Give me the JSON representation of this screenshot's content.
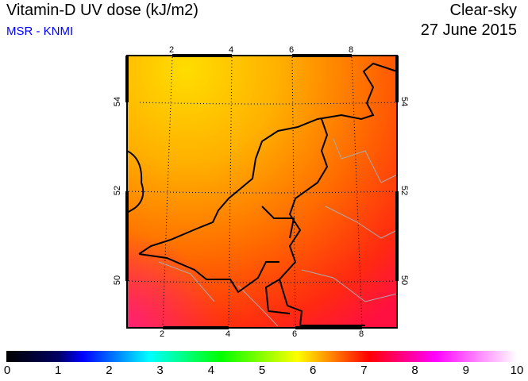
{
  "header": {
    "title": "Vitamin-D UV dose (kJ/m2)",
    "source": "MSR - KNMI",
    "condition": "Clear-sky",
    "date": "27 June 2015"
  },
  "map": {
    "top_lon_ticks": [
      "2",
      "4",
      "6",
      "8"
    ],
    "bottom_lon_ticks": [
      "2",
      "4",
      "6",
      "8"
    ],
    "lat_ticks": [
      "54",
      "52",
      "50"
    ]
  },
  "colorbar": {
    "labels": [
      "0",
      "1",
      "2",
      "3",
      "4",
      "5",
      "6",
      "7",
      "8",
      "9",
      "10"
    ],
    "colors": [
      "#000000",
      "#000060",
      "#0000ff",
      "#00ffff",
      "#00ff00",
      "#ffff00",
      "#ff0000",
      "#ff00ff",
      "#ffffff"
    ]
  }
}
